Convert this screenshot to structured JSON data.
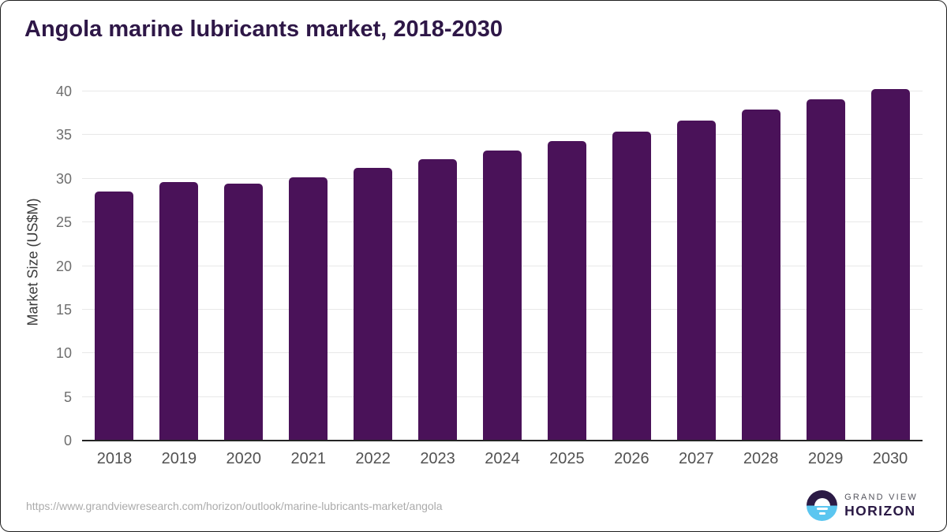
{
  "chart": {
    "title": "Angola marine lubricants market, 2018-2030"
  },
  "chart_data": {
    "type": "bar",
    "title": "Angola marine lubricants market, 2018-2030",
    "xlabel": "",
    "ylabel": "Market Size (US$M)",
    "categories": [
      "2018",
      "2019",
      "2020",
      "2021",
      "2022",
      "2023",
      "2024",
      "2025",
      "2026",
      "2027",
      "2028",
      "2029",
      "2030"
    ],
    "values": [
      28.5,
      29.6,
      29.4,
      30.2,
      31.2,
      32.2,
      33.2,
      34.3,
      35.4,
      36.7,
      37.9,
      39.1,
      40.3
    ],
    "ylim": [
      0,
      40
    ],
    "yticks": [
      0,
      5,
      10,
      15,
      20,
      25,
      30,
      35,
      40
    ],
    "grid": true,
    "legend_position": "none",
    "bar_color": "#4a1259",
    "gridline_color": "#e8e8e8",
    "axis_line_color": "#242424",
    "title_color": "#2e1747"
  },
  "footer": {
    "source_url": "https://www.grandviewresearch.com/horizon/outlook/marine-lubricants-market/angola",
    "logo": {
      "line1": "GRAND VIEW",
      "line2": "HORIZON",
      "purple": "#2b1a45",
      "blue": "#5bc6f0"
    }
  }
}
